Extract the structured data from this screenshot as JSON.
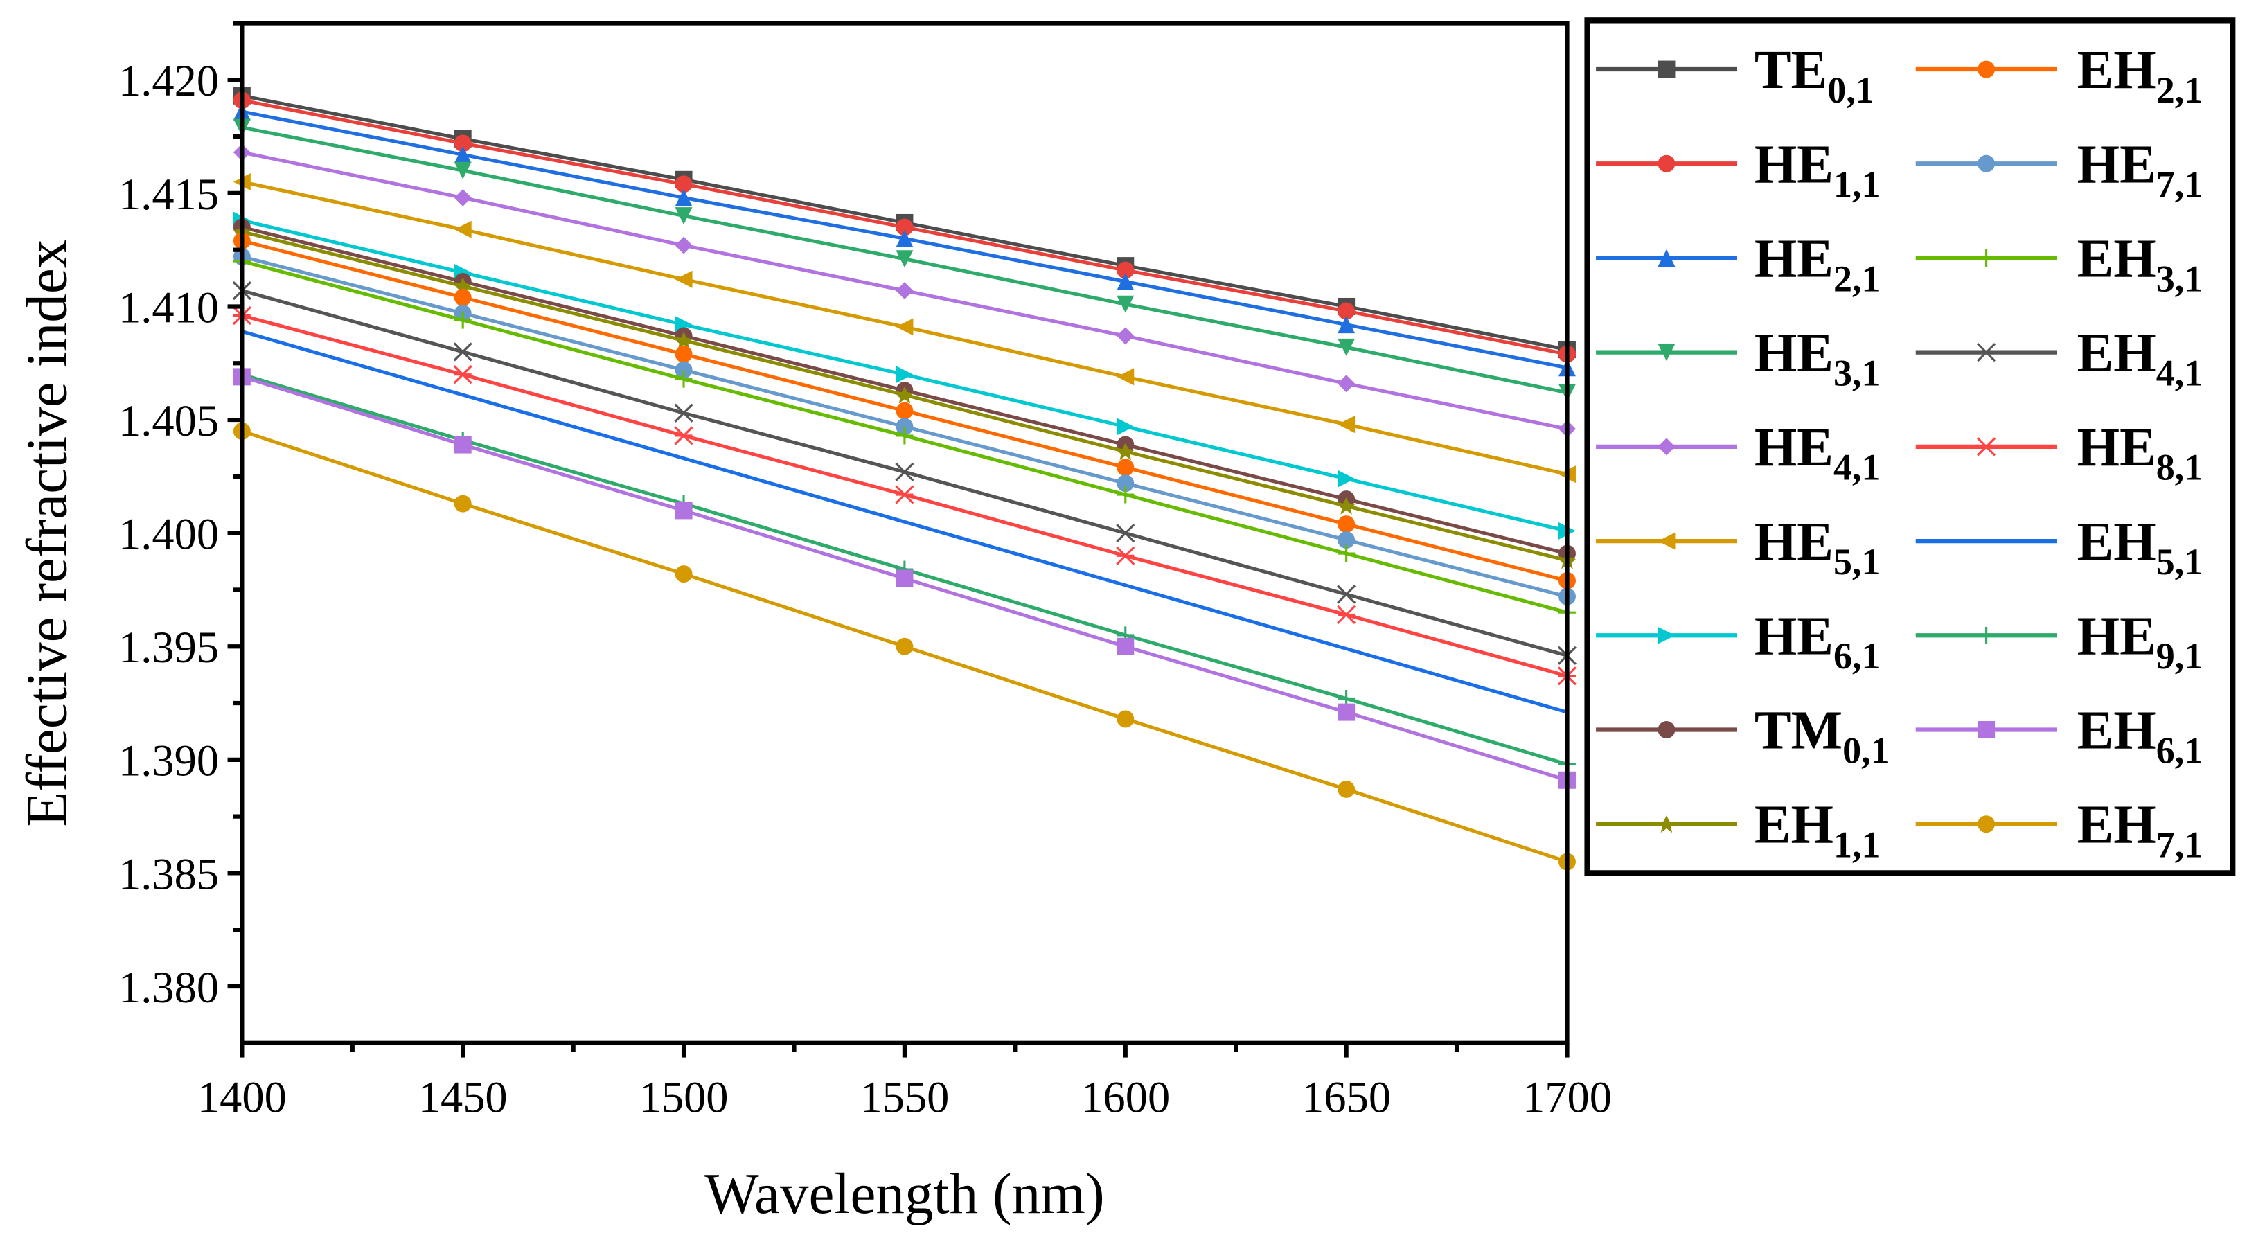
{
  "chart_data": {
    "type": "line",
    "title": "",
    "xlabel": "Wavelength (nm)",
    "ylabel": "Effective refractive index",
    "xlim": [
      1400,
      1700
    ],
    "ylim": [
      1.3775,
      1.4225
    ],
    "x": [
      1400,
      1450,
      1500,
      1550,
      1600,
      1650,
      1700
    ],
    "xticks": [
      "1400",
      "1450",
      "1500",
      "1550",
      "1600",
      "1650",
      "1700"
    ],
    "yticks": [
      "1.380",
      "1.385",
      "1.390",
      "1.395",
      "1.400",
      "1.405",
      "1.410",
      "1.415",
      "1.420"
    ],
    "grid": false,
    "legend_placement": "outside-right",
    "series": [
      {
        "name": "TE",
        "sub": "0,1",
        "color": "#4d4d4d",
        "marker": "square",
        "values": [
          1.4193,
          1.4174,
          1.4156,
          1.4137,
          1.4118,
          1.41,
          1.4081
        ]
      },
      {
        "name": "HE",
        "sub": "1,1",
        "color": "#e8413c",
        "marker": "circle",
        "values": [
          1.4191,
          1.4172,
          1.4154,
          1.4135,
          1.4116,
          1.4098,
          1.4079
        ]
      },
      {
        "name": "HE",
        "sub": "2,1",
        "color": "#1f6fe0",
        "marker": "triangle-up",
        "values": [
          1.4186,
          1.4167,
          1.4148,
          1.413,
          1.4111,
          1.4092,
          1.4073
        ]
      },
      {
        "name": "HE",
        "sub": "3,1",
        "color": "#2eaa6a",
        "marker": "triangle-down",
        "values": [
          1.4179,
          1.416,
          1.414,
          1.4121,
          1.4101,
          1.4082,
          1.4062
        ]
      },
      {
        "name": "HE",
        "sub": "4,1",
        "color": "#b073e0",
        "marker": "diamond",
        "values": [
          1.4168,
          1.4148,
          1.4127,
          1.4107,
          1.4087,
          1.4066,
          1.4046
        ]
      },
      {
        "name": "HE",
        "sub": "5,1",
        "color": "#d49a00",
        "marker": "triangle-left",
        "values": [
          1.4155,
          1.4134,
          1.4112,
          1.4091,
          1.4069,
          1.4048,
          1.4026
        ]
      },
      {
        "name": "HE",
        "sub": "6,1",
        "color": "#00c8d0",
        "marker": "triangle-right",
        "values": [
          1.4138,
          1.4115,
          1.4092,
          1.407,
          1.4047,
          1.4024,
          1.4001
        ]
      },
      {
        "name": "TM",
        "sub": "0,1",
        "color": "#7a4a48",
        "marker": "circle",
        "values": [
          1.4135,
          1.4111,
          1.4087,
          1.4063,
          1.4039,
          1.4015,
          1.3991
        ]
      },
      {
        "name": "EH",
        "sub": "1,1",
        "color": "#8c8c00",
        "marker": "star",
        "values": [
          1.4133,
          1.4109,
          1.4085,
          1.4061,
          1.4036,
          1.4012,
          1.3988
        ]
      },
      {
        "name": "EH",
        "sub": "2,1",
        "color": "#ff6a00",
        "marker": "circle",
        "values": [
          1.4129,
          1.4104,
          1.4079,
          1.4054,
          1.4029,
          1.4004,
          1.3979
        ]
      },
      {
        "name": "HE",
        "sub": "7,1",
        "color": "#6699cc",
        "marker": "circle",
        "values": [
          1.4122,
          1.4097,
          1.4072,
          1.4047,
          1.4022,
          1.3997,
          1.3972
        ]
      },
      {
        "name": "EH",
        "sub": "3,1",
        "color": "#66bb00",
        "marker": "plus",
        "values": [
          1.412,
          1.4094,
          1.4068,
          1.4043,
          1.4017,
          1.3991,
          1.3965
        ]
      },
      {
        "name": "EH",
        "sub": "4,1",
        "color": "#555555",
        "marker": "cross",
        "values": [
          1.4107,
          1.408,
          1.4053,
          1.4027,
          1.4,
          1.3973,
          1.3946
        ]
      },
      {
        "name": "HE",
        "sub": "8,1",
        "color": "#ff4444",
        "marker": "asterisk",
        "values": [
          1.4096,
          1.407,
          1.4043,
          1.4017,
          1.399,
          1.3964,
          1.3937
        ]
      },
      {
        "name": "EH",
        "sub": "5,1",
        "color": "#1a6fe8",
        "marker": "none",
        "values": [
          1.4089,
          1.4061,
          1.4033,
          1.4005,
          1.3977,
          1.3949,
          1.3921
        ]
      },
      {
        "name": "HE",
        "sub": "9,1",
        "color": "#2eaa6a",
        "marker": "plus",
        "values": [
          1.407,
          1.4041,
          1.4013,
          1.3984,
          1.3955,
          1.3927,
          1.3898
        ]
      },
      {
        "name": "EH",
        "sub": "6,1",
        "color": "#b073e0",
        "marker": "square",
        "values": [
          1.4069,
          1.4039,
          1.401,
          1.398,
          1.395,
          1.3921,
          1.3891
        ]
      },
      {
        "name": "EH",
        "sub": "7,1",
        "color": "#d49a00",
        "marker": "circle",
        "values": [
          1.4045,
          1.4013,
          1.3982,
          1.395,
          1.3918,
          1.3887,
          1.3855
        ]
      }
    ]
  }
}
